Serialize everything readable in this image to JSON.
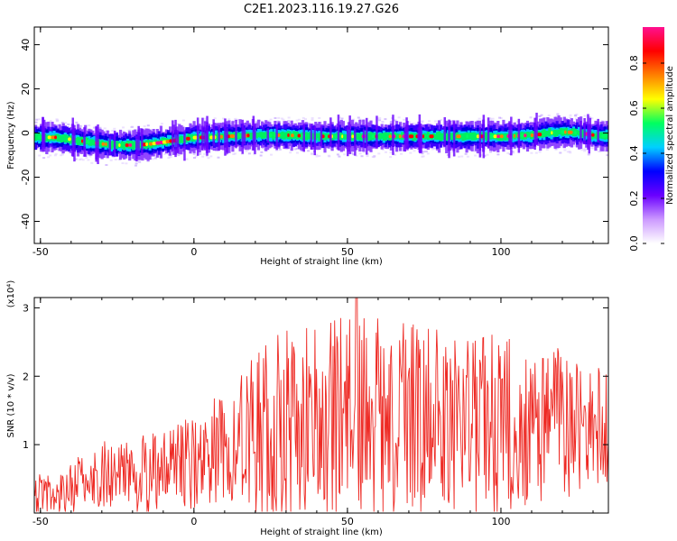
{
  "title": "C2E1.2023.116.19.27.G26",
  "chart_data": [
    {
      "type": "heatmap",
      "title": "C2E1.2023.116.19.27.G26",
      "xlabel": "Height of straight line (km)",
      "ylabel": "Frequency (Hz)",
      "xlim": [
        -52,
        135
      ],
      "ylim": [
        -50,
        48
      ],
      "x_ticks": [
        -50,
        0,
        50,
        100
      ],
      "x_tick_labels": [
        "-50",
        "0",
        "50",
        "100"
      ],
      "y_ticks": [
        -40,
        -20,
        0,
        20,
        40
      ],
      "y_tick_labels": [
        "-40",
        "-20",
        "0",
        "20",
        "40"
      ],
      "grid": false,
      "ridge": {
        "x": [
          -52,
          -45,
          -40,
          -35,
          -30,
          -25,
          -20,
          -15,
          -10,
          -5,
          0,
          5,
          10,
          20,
          30,
          40,
          50,
          60,
          70,
          80,
          90,
          100,
          110,
          115,
          120,
          125,
          130,
          135
        ],
        "freq": [
          -2,
          -2,
          -3,
          -4,
          -5,
          -5.5,
          -5.5,
          -5,
          -4,
          -3,
          -2,
          -2,
          -1.5,
          -1,
          -1,
          -1.5,
          -1.5,
          -1.5,
          -1.5,
          -1.5,
          -1.5,
          -1.5,
          -1,
          0,
          0.5,
          0,
          -1,
          -1.5
        ]
      },
      "colorbar": {
        "label": "Normalized spectral amplitude",
        "range": [
          0,
          0.96
        ],
        "ticks": [
          0.0,
          0.2,
          0.4,
          0.6,
          0.8
        ],
        "tick_labels": [
          "0.0",
          "0.2",
          "0.4",
          "0.6",
          "0.8"
        ],
        "colormap": [
          "#ffffff",
          "#cc99ff",
          "#6a00ff",
          "#0000ff",
          "#00d0ff",
          "#00ff60",
          "#ffff00",
          "#ff8000",
          "#ff0000",
          "#ff1090"
        ]
      }
    },
    {
      "type": "line",
      "xlabel": "Height of straight line (km)",
      "ylabel": "SNR (10 * v/v)",
      "y_scale_label": "(x10⁴)",
      "xlim": [
        -52,
        135
      ],
      "ylim": [
        0,
        3.15
      ],
      "x_ticks": [
        -50,
        0,
        50,
        100
      ],
      "x_tick_labels": [
        "-50",
        "0",
        "50",
        "100"
      ],
      "y_ticks": [
        1,
        2,
        3
      ],
      "y_tick_labels": [
        "1",
        "2",
        "3"
      ],
      "grid": false,
      "line_color": "#ee2a24",
      "envelope": {
        "x": [
          -52,
          -45,
          -40,
          -35,
          -30,
          -25,
          -20,
          -15,
          -10,
          -5,
          0,
          5,
          10,
          15,
          20,
          30,
          40,
          50,
          60,
          70,
          80,
          90,
          100,
          110,
          120,
          130,
          135
        ],
        "mean": [
          0.3,
          0.3,
          0.35,
          0.45,
          0.55,
          0.55,
          0.55,
          0.55,
          0.6,
          0.65,
          0.75,
          0.85,
          0.95,
          1.05,
          1.15,
          1.25,
          1.3,
          1.35,
          1.35,
          1.35,
          1.3,
          1.3,
          1.3,
          1.3,
          1.3,
          1.3,
          1.3
        ],
        "amplitude": [
          0.3,
          0.35,
          0.4,
          0.45,
          0.5,
          0.55,
          0.55,
          0.6,
          0.6,
          0.65,
          0.7,
          0.8,
          0.95,
          1.1,
          1.3,
          1.45,
          1.5,
          1.55,
          1.5,
          1.45,
          1.4,
          1.35,
          1.3,
          1.2,
          1.1,
          0.95,
          0.9
        ]
      },
      "peak": {
        "x": 53,
        "y": 3.15
      }
    }
  ]
}
